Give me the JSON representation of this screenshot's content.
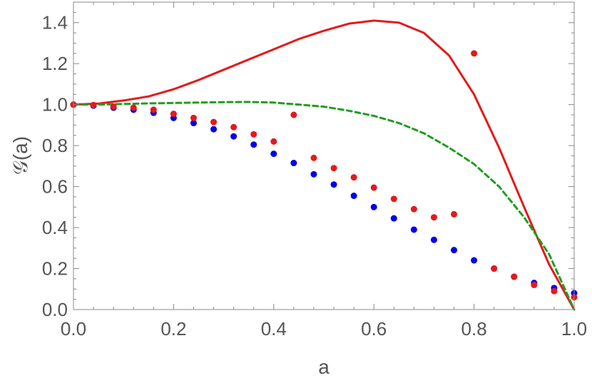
{
  "chart_data": {
    "type": "scatter",
    "xlabel": "a",
    "ylabel": "𝒢(a)",
    "xlim": [
      0,
      1
    ],
    "ylim": [
      0,
      1.5
    ],
    "x_ticks": [
      "0.0",
      "0.2",
      "0.4",
      "0.6",
      "0.8",
      "1.0"
    ],
    "y_ticks": [
      "0.0",
      "0.2",
      "0.4",
      "0.6",
      "0.8",
      "1.0",
      "1.2",
      "1.4"
    ],
    "grid": false,
    "frame": true,
    "series": [
      {
        "kind": "line",
        "style": "solid",
        "color": "#e31a1c",
        "x": [
          0,
          0.05,
          0.1,
          0.15,
          0.2,
          0.25,
          0.3,
          0.35,
          0.4,
          0.45,
          0.5,
          0.55,
          0.6,
          0.65,
          0.7,
          0.75,
          0.8,
          0.85,
          0.9,
          0.95,
          1.0
        ],
        "y": [
          1.0,
          1.005,
          1.02,
          1.04,
          1.075,
          1.12,
          1.17,
          1.22,
          1.27,
          1.32,
          1.36,
          1.395,
          1.41,
          1.4,
          1.35,
          1.24,
          1.05,
          0.79,
          0.5,
          0.22,
          0.0
        ]
      },
      {
        "kind": "line",
        "style": "dashed",
        "color": "#1f9e1f",
        "x": [
          0,
          0.05,
          0.1,
          0.15,
          0.2,
          0.25,
          0.3,
          0.35,
          0.4,
          0.45,
          0.5,
          0.55,
          0.6,
          0.65,
          0.7,
          0.75,
          0.8,
          0.85,
          0.9,
          0.95,
          1.0
        ],
        "y": [
          1.0,
          1.0,
          1.003,
          1.006,
          1.008,
          1.01,
          1.012,
          1.013,
          1.01,
          1.0,
          0.99,
          0.97,
          0.945,
          0.91,
          0.86,
          0.79,
          0.71,
          0.6,
          0.45,
          0.27,
          0.0
        ]
      },
      {
        "kind": "points",
        "color": "#0000ee",
        "x": [
          0,
          0.04,
          0.08,
          0.12,
          0.16,
          0.2,
          0.24,
          0.28,
          0.32,
          0.36,
          0.4,
          0.44,
          0.48,
          0.52,
          0.56,
          0.6,
          0.64,
          0.68,
          0.72,
          0.76,
          0.8,
          0.84,
          0.88,
          0.92,
          0.96,
          1.0
        ],
        "y": [
          1.0,
          0.995,
          0.985,
          0.975,
          0.96,
          0.935,
          0.91,
          0.88,
          0.845,
          0.805,
          0.76,
          0.715,
          0.66,
          0.61,
          0.555,
          0.5,
          0.445,
          0.39,
          0.34,
          0.29,
          0.24,
          0.2,
          0.16,
          0.13,
          0.105,
          0.08
        ]
      },
      {
        "kind": "points",
        "color": "#e31a1c",
        "x": [
          0,
          0.04,
          0.08,
          0.12,
          0.16,
          0.2,
          0.24,
          0.28,
          0.32,
          0.36,
          0.4,
          0.44,
          0.48,
          0.52,
          0.56,
          0.6,
          0.64,
          0.68,
          0.72,
          0.76,
          0.8,
          0.84,
          0.88,
          0.92,
          0.96,
          1.0
        ],
        "y": [
          1.0,
          0.998,
          0.99,
          0.985,
          0.975,
          0.955,
          0.935,
          0.915,
          0.89,
          0.855,
          0.82,
          0.95,
          0.74,
          0.69,
          0.645,
          0.595,
          0.54,
          0.49,
          0.45,
          0.465,
          1.25,
          0.2,
          0.16,
          0.12,
          0.09,
          0.06
        ]
      }
    ]
  }
}
